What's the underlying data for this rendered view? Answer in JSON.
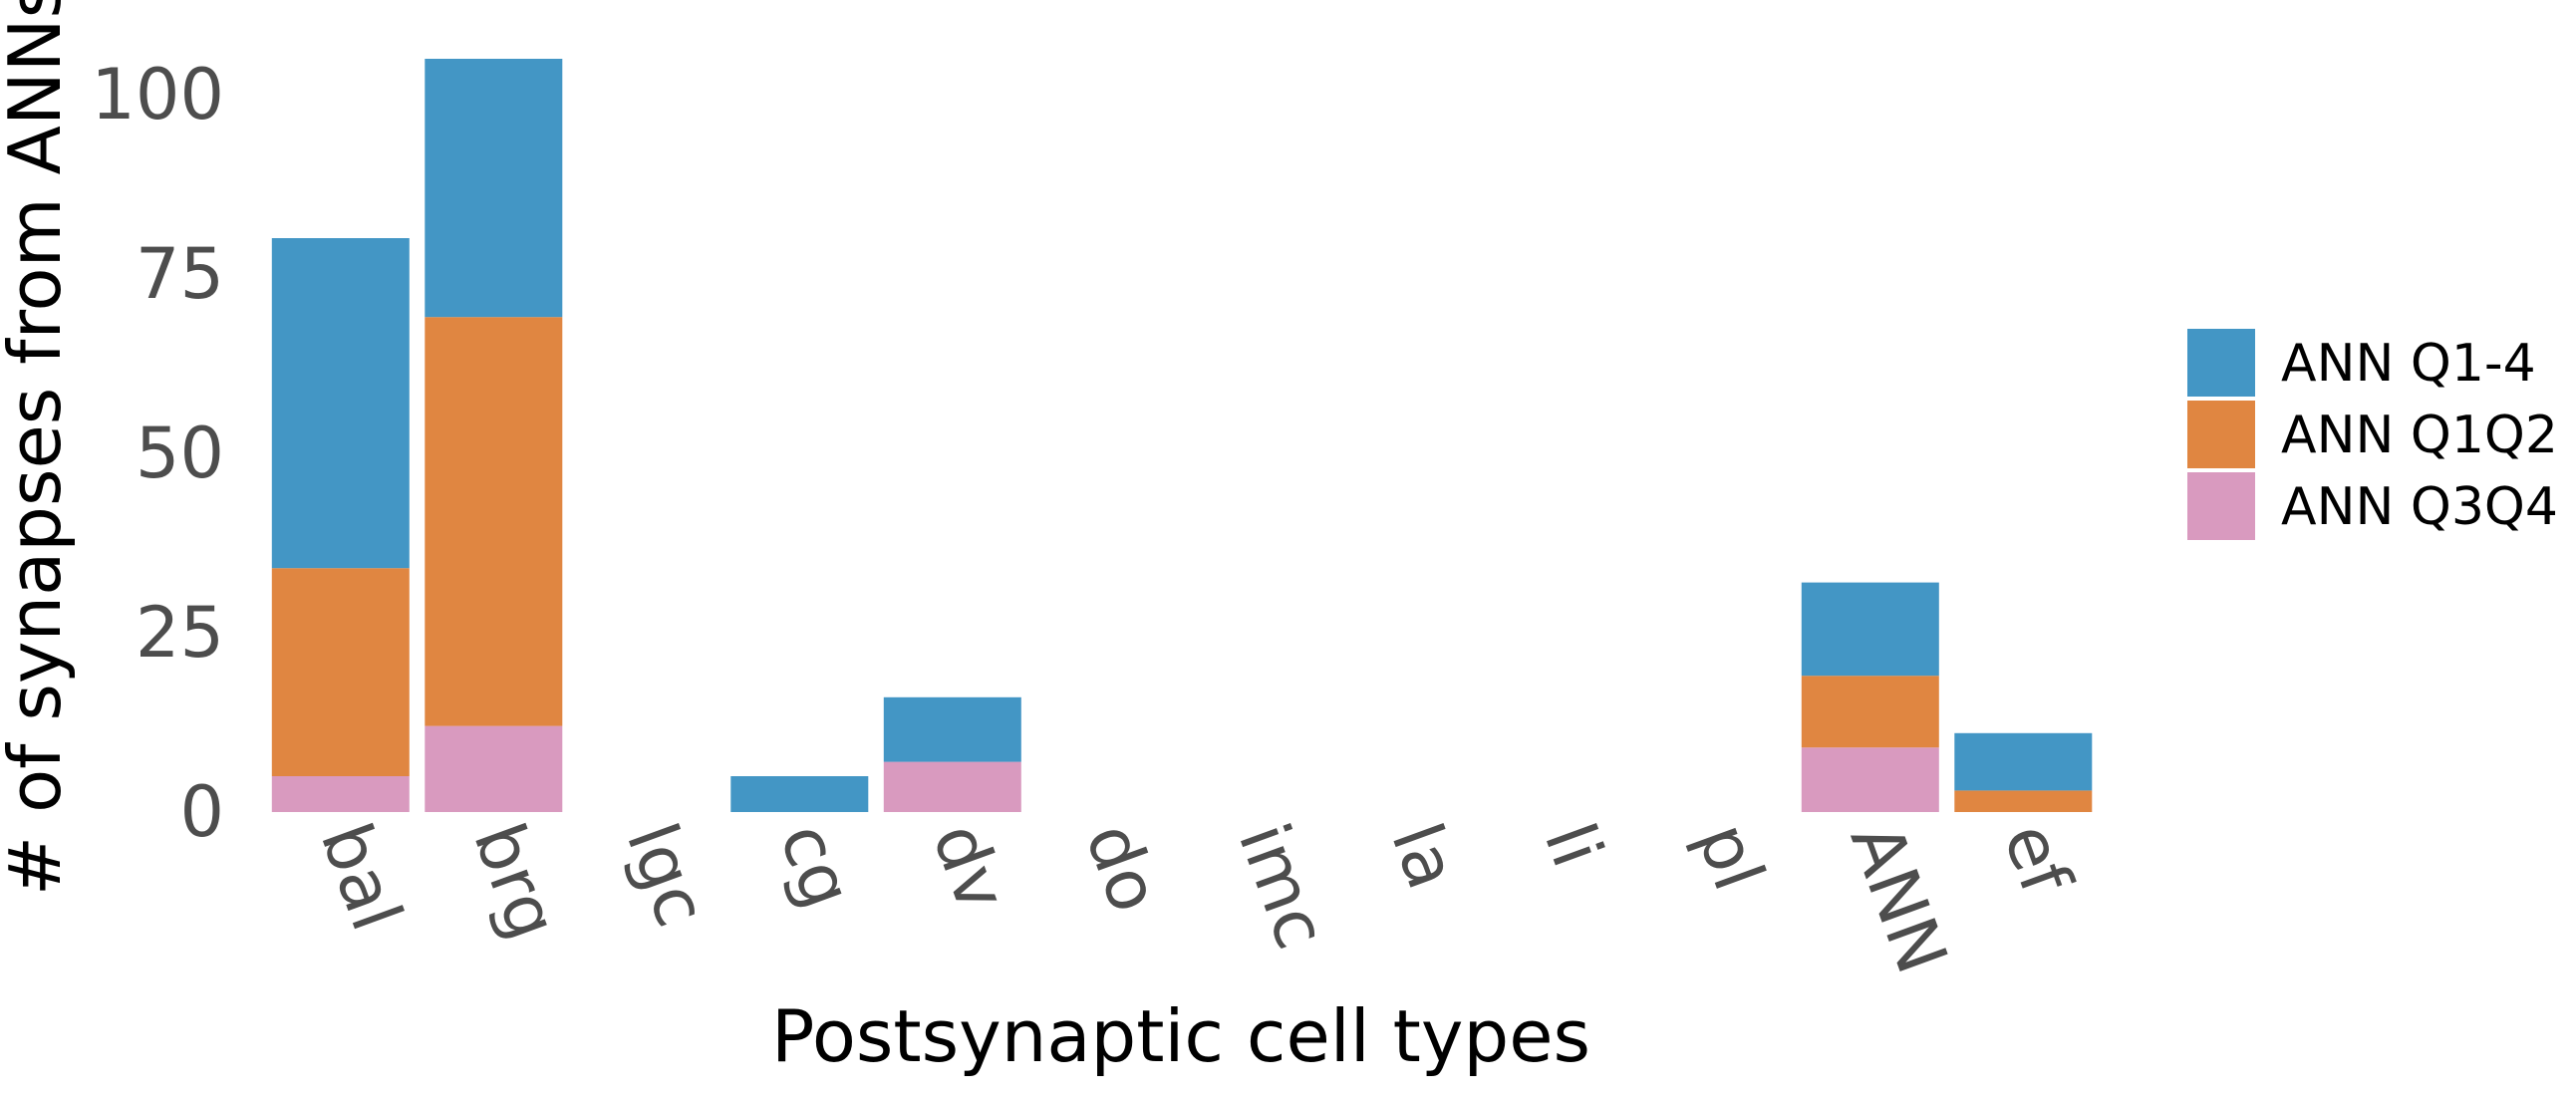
{
  "chart_data": {
    "type": "bar",
    "stacked": true,
    "title": "",
    "xlabel": "Postsynaptic cell types",
    "ylabel": "# of synapses from ANNs",
    "categories": [
      "bal",
      "brg",
      "lgc",
      "cg",
      "dv",
      "do",
      "imc",
      "la",
      "li",
      "pl",
      "ANN",
      "ef"
    ],
    "ylim": [
      0,
      105
    ],
    "yticks": [
      0,
      25,
      50,
      75,
      100
    ],
    "grid": false,
    "legend_position": "right",
    "series": [
      {
        "name": "ANN Q3Q4",
        "color": "#D99ABF",
        "values": [
          5,
          12,
          0,
          0,
          7,
          0,
          0,
          0,
          0,
          0,
          9,
          0
        ]
      },
      {
        "name": "ANN Q1Q2",
        "color": "#E08641",
        "values": [
          29,
          57,
          0,
          0,
          0,
          0,
          0,
          0,
          0,
          0,
          10,
          3
        ]
      },
      {
        "name": "ANN Q1-4",
        "color": "#4396C5",
        "values": [
          46,
          36,
          0,
          5,
          9,
          0,
          0,
          0,
          0,
          0,
          13,
          8
        ]
      }
    ],
    "legend_order": [
      "ANN Q1-4",
      "ANN Q1Q2",
      "ANN Q3Q4"
    ]
  }
}
